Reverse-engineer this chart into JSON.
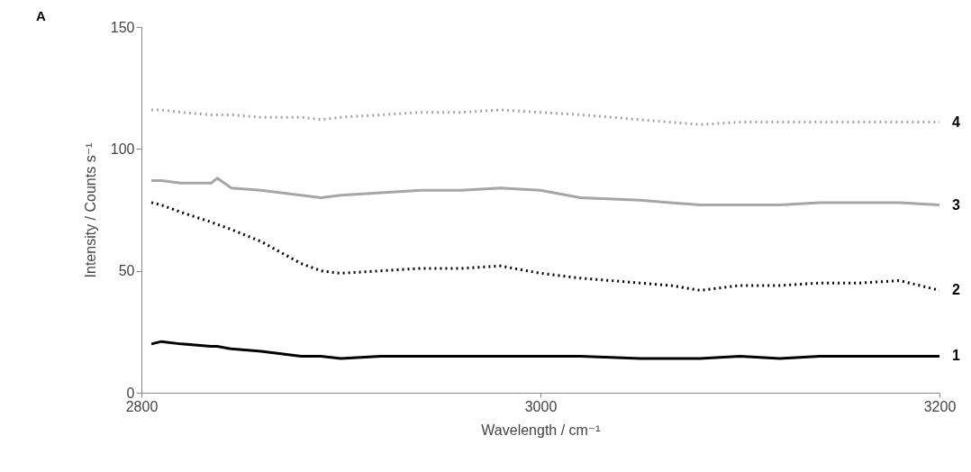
{
  "chart_data": {
    "type": "line",
    "xlabel": "Wavelength / cm⁻¹",
    "ylabel": "Intensity / Counts s⁻¹",
    "annotations": [
      "A"
    ],
    "x": [
      2805,
      2810,
      2820,
      2835,
      2838,
      2845,
      2860,
      2880,
      2890,
      2900,
      2920,
      2940,
      2960,
      2980,
      3000,
      3020,
      3050,
      3065,
      3080,
      3100,
      3120,
      3140,
      3160,
      3180,
      3200
    ],
    "series": [
      {
        "name": "4",
        "color": "#a6a6a6",
        "line_style": "dotted",
        "values": [
          116,
          116,
          115,
          114,
          114,
          114,
          113,
          113,
          112,
          113,
          114,
          115,
          115,
          116,
          115,
          114,
          112,
          111,
          110,
          111,
          111,
          111,
          111,
          111,
          111
        ]
      },
      {
        "name": "3",
        "color": "#a6a6a6",
        "line_style": "solid",
        "values": [
          87,
          87,
          86,
          86,
          88,
          84,
          83,
          81,
          80,
          81,
          82,
          83,
          83,
          84,
          83,
          80,
          79,
          78,
          77,
          77,
          77,
          78,
          78,
          78,
          77
        ]
      },
      {
        "name": "2",
        "color": "#000000",
        "line_style": "dotted",
        "values": [
          78,
          77,
          74,
          70,
          69,
          67,
          62,
          53,
          50,
          49,
          50,
          51,
          51,
          52,
          49,
          47,
          45,
          44,
          42,
          44,
          44,
          45,
          45,
          46,
          42
        ]
      },
      {
        "name": "1",
        "color": "#000000",
        "line_style": "solid",
        "values": [
          20,
          21,
          20,
          19,
          19,
          18,
          17,
          15,
          15,
          14,
          15,
          15,
          15,
          15,
          15,
          15,
          14,
          14,
          14,
          15,
          14,
          15,
          15,
          15,
          15
        ]
      }
    ],
    "xlim": [
      2800,
      3200
    ],
    "xticks": [
      2800,
      3000,
      3200
    ],
    "ylim": [
      0,
      150
    ],
    "yticks": [
      0,
      50,
      100,
      150
    ],
    "grid": false
  }
}
